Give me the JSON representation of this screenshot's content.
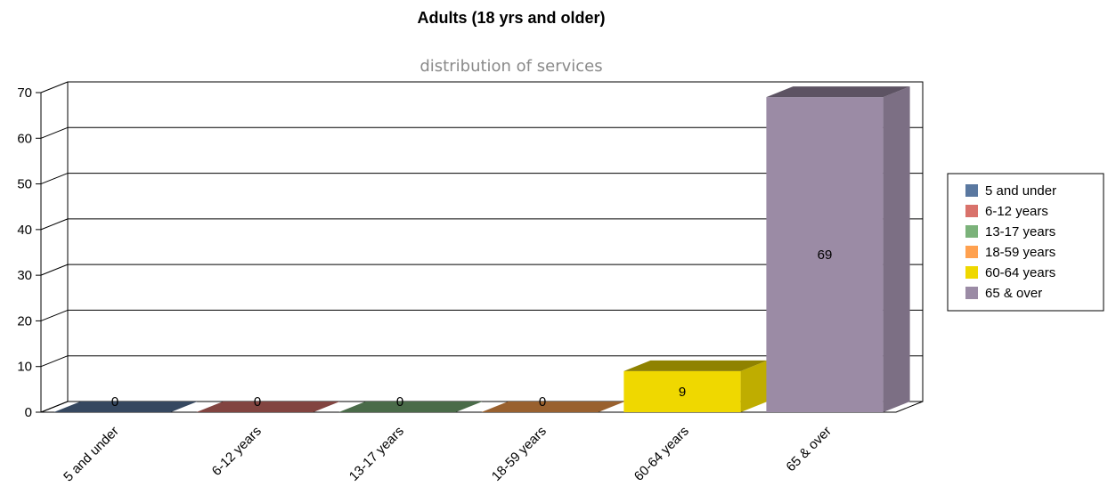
{
  "chart_data": {
    "type": "bar",
    "title": "Adults (18 yrs and older)",
    "subtitle": "distribution of services",
    "categories": [
      "5 and under",
      "6-12 years",
      "13-17 years",
      "18-59 years",
      "60-64 years",
      "65 & over"
    ],
    "values": [
      0,
      0,
      0,
      0,
      9,
      69
    ],
    "value_labels": [
      "0",
      "0",
      "0",
      "0",
      "9",
      "69"
    ],
    "ylim": [
      0,
      70
    ],
    "yticks": [
      "0",
      "10",
      "20",
      "30",
      "40",
      "50",
      "60",
      "70"
    ],
    "xlabel": "",
    "ylabel": "",
    "grid": true,
    "legend_position": "right",
    "three_d": true,
    "colors": [
      "#5a78a0",
      "#d9726b",
      "#7bb27a",
      "#ffa14f",
      "#efd800",
      "#9b8ba5"
    ],
    "legend": [
      "5 and under",
      "6-12 years",
      "13-17 years",
      "18-59 years",
      "60-64 years",
      "65 & over"
    ]
  }
}
